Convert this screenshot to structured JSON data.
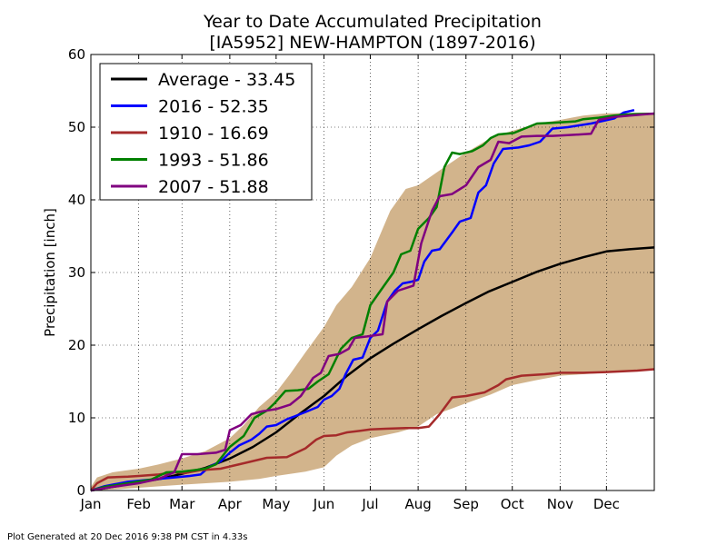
{
  "chart_data": {
    "type": "line",
    "title": "Year to Date Accumulated Precipitation",
    "subtitle": "[IA5952] NEW-HAMPTON (1897-2016)",
    "xlabel": "",
    "ylabel": "Precipitation [inch]",
    "x_ticks": [
      "Jan",
      "Feb",
      "Mar",
      "Apr",
      "May",
      "Jun",
      "Jul",
      "Aug",
      "Sep",
      "Oct",
      "Nov",
      "Dec"
    ],
    "x_tick_days": [
      1,
      32,
      60,
      91,
      121,
      152,
      182,
      213,
      244,
      274,
      305,
      335
    ],
    "xlim": [
      1,
      366
    ],
    "ylim": [
      0,
      60
    ],
    "y_ticks": [
      0,
      10,
      20,
      30,
      40,
      50,
      60
    ],
    "grid": true,
    "legend_placement": "top-left",
    "x_unit": "day of year",
    "range_band": {
      "color": "#d2b48c",
      "min": [
        [
          1,
          0
        ],
        [
          20,
          0.2
        ],
        [
          40,
          0.5
        ],
        [
          60,
          0.8
        ],
        [
          91,
          1.2
        ],
        [
          110,
          1.6
        ],
        [
          121,
          2.0
        ],
        [
          140,
          2.6
        ],
        [
          152,
          3.2
        ],
        [
          160,
          4.8
        ],
        [
          170,
          6.2
        ],
        [
          182,
          7.2
        ],
        [
          200,
          8.0
        ],
        [
          213,
          8.8
        ],
        [
          225,
          10.5
        ],
        [
          244,
          12.0
        ],
        [
          260,
          13.2
        ],
        [
          274,
          14.5
        ],
        [
          290,
          15.2
        ],
        [
          305,
          15.8
        ],
        [
          335,
          16.2
        ],
        [
          366,
          16.7
        ]
      ],
      "max": [
        [
          1,
          0.5
        ],
        [
          5,
          1.8
        ],
        [
          15,
          2.5
        ],
        [
          32,
          3.0
        ],
        [
          45,
          3.6
        ],
        [
          60,
          4.4
        ],
        [
          75,
          5.4
        ],
        [
          91,
          7.2
        ],
        [
          100,
          9.0
        ],
        [
          110,
          11.5
        ],
        [
          121,
          13.5
        ],
        [
          130,
          16.0
        ],
        [
          140,
          19.0
        ],
        [
          152,
          22.5
        ],
        [
          160,
          25.5
        ],
        [
          170,
          28.0
        ],
        [
          182,
          32.0
        ],
        [
          190,
          36.0
        ],
        [
          195,
          38.5
        ],
        [
          205,
          41.5
        ],
        [
          213,
          42.0
        ],
        [
          230,
          44.5
        ],
        [
          244,
          46.5
        ],
        [
          260,
          48.5
        ],
        [
          274,
          49.5
        ],
        [
          290,
          50.5
        ],
        [
          305,
          51.0
        ],
        [
          320,
          51.6
        ],
        [
          335,
          51.9
        ],
        [
          366,
          52.0
        ]
      ]
    },
    "series": [
      {
        "name": "Average - 33.45",
        "color": "#000000",
        "points": [
          [
            1,
            0
          ],
          [
            15,
            0.5
          ],
          [
            32,
            1.1
          ],
          [
            46,
            1.6
          ],
          [
            60,
            2.3
          ],
          [
            75,
            3.1
          ],
          [
            91,
            4.4
          ],
          [
            106,
            6.0
          ],
          [
            121,
            8.0
          ],
          [
            136,
            10.5
          ],
          [
            152,
            13.0
          ],
          [
            167,
            15.8
          ],
          [
            182,
            18.2
          ],
          [
            197,
            20.2
          ],
          [
            213,
            22.2
          ],
          [
            228,
            24.0
          ],
          [
            244,
            25.8
          ],
          [
            259,
            27.4
          ],
          [
            274,
            28.7
          ],
          [
            290,
            30.1
          ],
          [
            305,
            31.2
          ],
          [
            320,
            32.1
          ],
          [
            335,
            32.9
          ],
          [
            350,
            33.2
          ],
          [
            366,
            33.45
          ]
        ]
      },
      {
        "name": "2016 - 52.35",
        "color": "#0000ff",
        "points": [
          [
            1,
            0
          ],
          [
            10,
            0.6
          ],
          [
            25,
            1.2
          ],
          [
            40,
            1.5
          ],
          [
            55,
            1.8
          ],
          [
            65,
            2.0
          ],
          [
            72,
            2.2
          ],
          [
            78,
            3.3
          ],
          [
            85,
            4.0
          ],
          [
            91,
            5.2
          ],
          [
            97,
            6.2
          ],
          [
            105,
            7.0
          ],
          [
            110,
            7.8
          ],
          [
            115,
            8.8
          ],
          [
            121,
            9.0
          ],
          [
            128,
            9.8
          ],
          [
            133,
            10.2
          ],
          [
            140,
            10.8
          ],
          [
            148,
            11.5
          ],
          [
            152,
            12.5
          ],
          [
            157,
            13.0
          ],
          [
            162,
            14.0
          ],
          [
            166,
            16.0
          ],
          [
            171,
            18.0
          ],
          [
            177,
            18.3
          ],
          [
            182,
            21.0
          ],
          [
            187,
            22.0
          ],
          [
            193,
            26.0
          ],
          [
            198,
            27.5
          ],
          [
            203,
            28.5
          ],
          [
            208,
            28.7
          ],
          [
            213,
            29.0
          ],
          [
            217,
            31.5
          ],
          [
            222,
            33.0
          ],
          [
            227,
            33.2
          ],
          [
            235,
            35.5
          ],
          [
            240,
            37.0
          ],
          [
            247,
            37.5
          ],
          [
            252,
            41.0
          ],
          [
            257,
            42.0
          ],
          [
            262,
            45.0
          ],
          [
            268,
            47.0
          ],
          [
            278,
            47.2
          ],
          [
            285,
            47.5
          ],
          [
            292,
            48.0
          ],
          [
            300,
            49.8
          ],
          [
            310,
            50.0
          ],
          [
            325,
            50.5
          ],
          [
            340,
            51.2
          ],
          [
            346,
            52.0
          ],
          [
            353,
            52.35
          ]
        ]
      },
      {
        "name": "1910 - 16.69",
        "color": "#a52a2a",
        "points": [
          [
            1,
            0
          ],
          [
            5,
            1.0
          ],
          [
            12,
            1.8
          ],
          [
            25,
            1.9
          ],
          [
            32,
            2.0
          ],
          [
            45,
            2.2
          ],
          [
            55,
            2.5
          ],
          [
            62,
            2.4
          ],
          [
            72,
            2.8
          ],
          [
            85,
            3.0
          ],
          [
            95,
            3.5
          ],
          [
            105,
            4.0
          ],
          [
            115,
            4.5
          ],
          [
            128,
            4.6
          ],
          [
            140,
            5.8
          ],
          [
            147,
            7.0
          ],
          [
            152,
            7.5
          ],
          [
            160,
            7.6
          ],
          [
            167,
            8.0
          ],
          [
            175,
            8.2
          ],
          [
            182,
            8.4
          ],
          [
            192,
            8.5
          ],
          [
            205,
            8.6
          ],
          [
            213,
            8.6
          ],
          [
            220,
            8.8
          ],
          [
            227,
            10.5
          ],
          [
            235,
            12.8
          ],
          [
            244,
            13.0
          ],
          [
            256,
            13.5
          ],
          [
            265,
            14.5
          ],
          [
            270,
            15.3
          ],
          [
            280,
            15.8
          ],
          [
            295,
            16.0
          ],
          [
            305,
            16.2
          ],
          [
            320,
            16.2
          ],
          [
            335,
            16.3
          ],
          [
            355,
            16.5
          ],
          [
            366,
            16.69
          ]
        ]
      },
      {
        "name": "1993 - 51.86",
        "color": "#008000",
        "points": [
          [
            1,
            0
          ],
          [
            10,
            0.5
          ],
          [
            25,
            1.0
          ],
          [
            40,
            1.5
          ],
          [
            50,
            2.5
          ],
          [
            60,
            2.6
          ],
          [
            68,
            2.8
          ],
          [
            75,
            3.0
          ],
          [
            82,
            3.6
          ],
          [
            91,
            6.0
          ],
          [
            100,
            7.5
          ],
          [
            107,
            10.0
          ],
          [
            115,
            11.0
          ],
          [
            120,
            12.0
          ],
          [
            127,
            13.7
          ],
          [
            135,
            13.8
          ],
          [
            142,
            14.0
          ],
          [
            148,
            15.0
          ],
          [
            155,
            16.0
          ],
          [
            163,
            19.5
          ],
          [
            170,
            21.0
          ],
          [
            177,
            21.5
          ],
          [
            182,
            25.5
          ],
          [
            187,
            27.0
          ],
          [
            192,
            28.5
          ],
          [
            197,
            30.0
          ],
          [
            202,
            32.5
          ],
          [
            208,
            33.0
          ],
          [
            213,
            36.0
          ],
          [
            220,
            37.5
          ],
          [
            225,
            39.0
          ],
          [
            230,
            44.5
          ],
          [
            235,
            46.5
          ],
          [
            240,
            46.3
          ],
          [
            248,
            46.7
          ],
          [
            255,
            47.5
          ],
          [
            260,
            48.5
          ],
          [
            265,
            49.0
          ],
          [
            275,
            49.2
          ],
          [
            290,
            50.5
          ],
          [
            300,
            50.6
          ],
          [
            315,
            50.8
          ],
          [
            320,
            51.1
          ],
          [
            330,
            51.3
          ],
          [
            340,
            51.6
          ],
          [
            352,
            51.8
          ],
          [
            366,
            51.86
          ]
        ]
      },
      {
        "name": "2007 - 51.88",
        "color": "#800080",
        "points": [
          [
            1,
            0
          ],
          [
            15,
            0.5
          ],
          [
            32,
            1.0
          ],
          [
            45,
            1.6
          ],
          [
            55,
            2.5
          ],
          [
            60,
            5.0
          ],
          [
            70,
            5.0
          ],
          [
            82,
            5.2
          ],
          [
            88,
            5.6
          ],
          [
            91,
            8.3
          ],
          [
            98,
            9.0
          ],
          [
            105,
            10.5
          ],
          [
            112,
            10.9
          ],
          [
            121,
            11.2
          ],
          [
            130,
            11.8
          ],
          [
            137,
            13.0
          ],
          [
            145,
            15.5
          ],
          [
            150,
            16.2
          ],
          [
            155,
            18.5
          ],
          [
            162,
            18.8
          ],
          [
            168,
            19.5
          ],
          [
            172,
            21.0
          ],
          [
            180,
            21.2
          ],
          [
            190,
            21.5
          ],
          [
            193,
            26.0
          ],
          [
            200,
            27.5
          ],
          [
            210,
            28.2
          ],
          [
            215,
            34.0
          ],
          [
            222,
            38.5
          ],
          [
            227,
            40.5
          ],
          [
            235,
            40.8
          ],
          [
            244,
            42.0
          ],
          [
            252,
            44.5
          ],
          [
            260,
            45.5
          ],
          [
            265,
            48.0
          ],
          [
            272,
            47.8
          ],
          [
            280,
            48.7
          ],
          [
            290,
            48.8
          ],
          [
            300,
            48.8
          ],
          [
            310,
            48.9
          ],
          [
            318,
            49.0
          ],
          [
            325,
            49.1
          ],
          [
            330,
            51.0
          ],
          [
            340,
            51.4
          ],
          [
            350,
            51.6
          ],
          [
            366,
            51.88
          ]
        ]
      }
    ]
  },
  "footer": {
    "text": "Plot Generated at 20 Dec 2016 9:38 PM CST in 4.33s"
  }
}
